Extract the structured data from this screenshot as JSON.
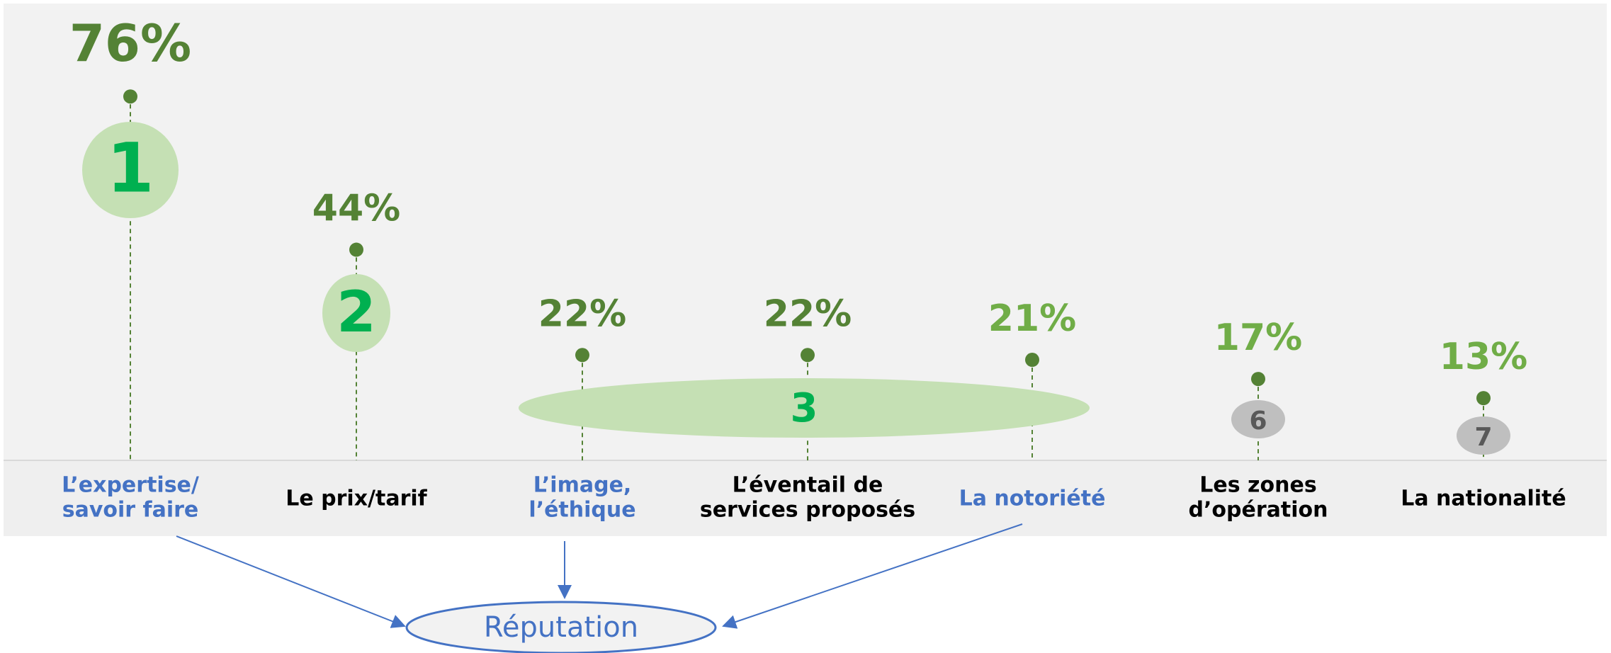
{
  "chart_data": {
    "type": "lollipop",
    "categories": [
      [
        "L’expertise/",
        "savoir faire"
      ],
      [
        "Le prix/tarif"
      ],
      [
        "L’image,",
        "l’éthique"
      ],
      [
        "L’éventail de",
        "services proposés"
      ],
      [
        "La notoriété"
      ],
      [
        "Les zones",
        "d’opération"
      ],
      [
        "La nationalité"
      ]
    ],
    "category_colors": [
      "#4472c4",
      "#000000",
      "#4472c4",
      "#000000",
      "#4472c4",
      "#000000",
      "#000000"
    ],
    "values": [
      76,
      44,
      22,
      22,
      21,
      17,
      13
    ],
    "value_labels": [
      "76%",
      "44%",
      "22%",
      "22%",
      "21%",
      "17%",
      "13%"
    ],
    "value_colors": [
      "#548235",
      "#548235",
      "#548235",
      "#548235",
      "#70ad47",
      "#70ad47",
      "#70ad47"
    ],
    "ranks": [
      1,
      2,
      3,
      null,
      null,
      6,
      7
    ],
    "color": "#548235",
    "annotation": "Réputation"
  }
}
